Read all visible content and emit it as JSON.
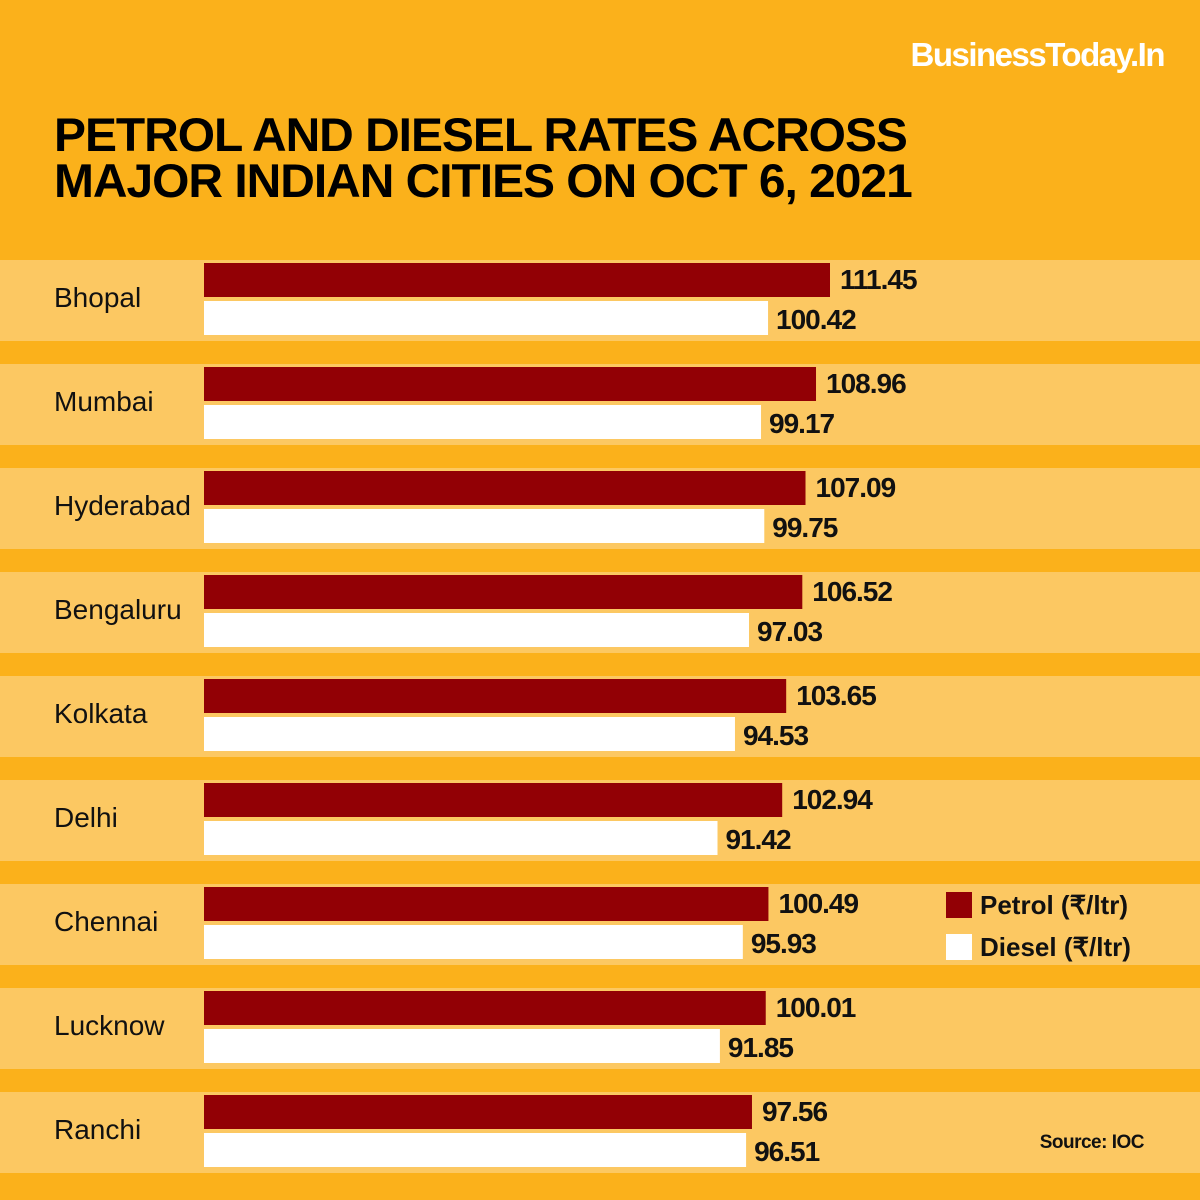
{
  "brand": "BusinessToday.In",
  "title_lines": [
    "PETROL AND DIESEL RATES ACROSS",
    "MAJOR INDIAN CITIES ON OCT 6, 2021"
  ],
  "source": "Source: IOC",
  "colors": {
    "background": "#FBB11B",
    "band": "#FCC862",
    "petrol": "#920005",
    "diesel": "#FFFFFF"
  },
  "chart_data": {
    "type": "bar",
    "orientation": "horizontal",
    "title": "PETROL AND DIESEL RATES ACROSS MAJOR INDIAN CITIES ON OCT 6, 2021",
    "xlabel": "",
    "ylabel": "",
    "xlim": [
      0,
      112
    ],
    "grid": false,
    "legend_position": "right",
    "categories": [
      "Bhopal",
      "Mumbai",
      "Hyderabad",
      "Bengaluru",
      "Kolkata",
      "Delhi",
      "Chennai",
      "Lucknow",
      "Ranchi"
    ],
    "series": [
      {
        "name": "Petrol (₹/ltr)",
        "values": [
          111.45,
          108.96,
          107.09,
          106.52,
          103.65,
          102.94,
          100.49,
          100.01,
          97.56
        ]
      },
      {
        "name": "Diesel (₹/ltr)",
        "values": [
          100.42,
          99.17,
          99.75,
          97.03,
          94.53,
          91.42,
          95.93,
          91.85,
          96.51
        ]
      }
    ],
    "value_labels": {
      "petrol": [
        "111.45",
        "108.96",
        "107.09",
        "106.52",
        "103.65",
        "102.94",
        "100.49",
        "100.01",
        "97.56"
      ],
      "diesel": [
        "100.42",
        "99.17",
        "99.75",
        "97.03",
        "94.53",
        "91.42",
        "95.93",
        "91.85",
        "96.51"
      ]
    }
  },
  "legend": [
    {
      "label": "Petrol (₹/ltr)",
      "series": "petrol"
    },
    {
      "label": "Diesel (₹/ltr)",
      "series": "diesel"
    }
  ]
}
